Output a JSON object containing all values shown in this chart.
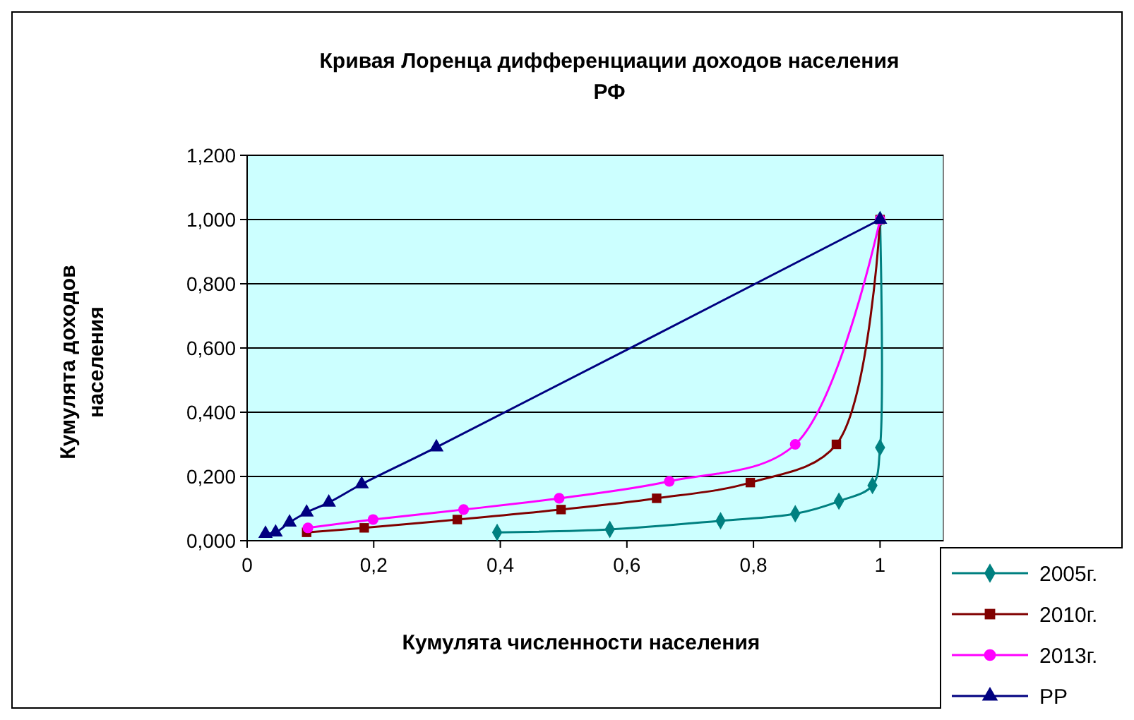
{
  "chart_data": {
    "type": "line",
    "title": "Кривая Лоренца дифференциации доходов населения РФ",
    "xlabel": "Кумулята численности населения",
    "ylabel": "Кумулята доходов населения",
    "xlim": [
      0,
      1.1
    ],
    "xticks": [
      {
        "value": 0,
        "label": "0"
      },
      {
        "value": 0.2,
        "label": "0,2"
      },
      {
        "value": 0.4,
        "label": "0,4"
      },
      {
        "value": 0.6,
        "label": "0,6"
      },
      {
        "value": 0.8,
        "label": "0,8"
      },
      {
        "value": 1,
        "label": "1"
      }
    ],
    "ylim": [
      0,
      1.2
    ],
    "yticks": [
      {
        "value": 0,
        "label": "0,000"
      },
      {
        "value": 0.2,
        "label": "0,200"
      },
      {
        "value": 0.4,
        "label": "0,400"
      },
      {
        "value": 0.6,
        "label": "0,600"
      },
      {
        "value": 0.8,
        "label": "0,800"
      },
      {
        "value": 1,
        "label": "1,000"
      },
      {
        "value": 1.2,
        "label": "1,200"
      }
    ],
    "grid": "y",
    "legend": "bottom right",
    "series": [
      {
        "name": "2005г.",
        "color": "#008080",
        "marker": "diamond",
        "x": [
          0.395,
          0.573,
          0.748,
          0.866,
          0.935,
          0.988,
          1.0,
          1.0
        ],
        "values": [
          0.026,
          0.035,
          0.062,
          0.084,
          0.123,
          0.172,
          0.29,
          1.0
        ]
      },
      {
        "name": "2010г.",
        "color": "#800000",
        "marker": "square",
        "x": [
          0.094,
          0.185,
          0.332,
          0.496,
          0.647,
          0.795,
          0.931,
          1.0
        ],
        "values": [
          0.026,
          0.04,
          0.066,
          0.097,
          0.132,
          0.181,
          0.3,
          1.0
        ]
      },
      {
        "name": "2013г.",
        "color": "#ff00ff",
        "marker": "circle",
        "x": [
          0.096,
          0.199,
          0.342,
          0.493,
          0.667,
          0.866,
          1.0
        ],
        "values": [
          0.04,
          0.066,
          0.097,
          0.132,
          0.185,
          0.3,
          1.0
        ]
      },
      {
        "name": "РР",
        "color": "#000080",
        "marker": "triangle",
        "x": [
          0.029,
          0.045,
          0.067,
          0.094,
          0.129,
          0.181,
          0.299,
          1.0
        ],
        "values": [
          0.022,
          0.026,
          0.057,
          0.088,
          0.119,
          0.176,
          0.291,
          1.0
        ]
      }
    ]
  }
}
